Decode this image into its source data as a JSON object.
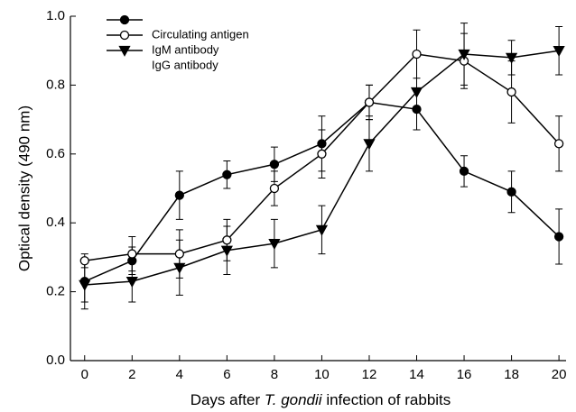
{
  "chart_data": {
    "type": "line",
    "xlabel": {
      "before": "Days after",
      "italic": "T. gondii",
      "after": "infection of rabbits"
    },
    "ylabel": "Optical density (490 nm)",
    "x": [
      0,
      2,
      4,
      6,
      8,
      10,
      12,
      14,
      16,
      18,
      20
    ],
    "xlim": [
      -0.6,
      20.3
    ],
    "xticks": [
      0,
      2,
      4,
      6,
      8,
      10,
      12,
      14,
      16,
      18,
      20
    ],
    "ylim": [
      0,
      1
    ],
    "yticks": [
      {
        "value": 0,
        "label": "0.0"
      },
      0.2,
      0.4,
      0.6,
      0.8,
      {
        "value": 1,
        "label": "1.0"
      }
    ],
    "series": [
      {
        "name": "Circulating antigen",
        "color": "#000000",
        "marker": "filled-circle",
        "values": [
          0.23,
          0.29,
          0.48,
          0.54,
          0.57,
          0.63,
          0.75,
          0.73,
          0.55,
          0.49,
          0.36
        ],
        "errors": [
          0.06,
          0.04,
          0.07,
          0.04,
          0.05,
          0.08,
          0.05,
          0.06,
          0.045,
          0.06,
          0.08
        ]
      },
      {
        "name": "IgM antibody",
        "color": "#000000",
        "marker": "open-circle",
        "values": [
          0.29,
          0.31,
          0.31,
          0.35,
          0.5,
          0.6,
          0.75,
          0.89,
          0.87,
          0.78,
          0.63
        ],
        "errors": [
          0.02,
          0.05,
          0.07,
          0.06,
          0.05,
          0.07,
          0.05,
          0.07,
          0.08,
          0.09,
          0.08
        ]
      },
      {
        "name": "IgG antibody",
        "color": "#000000",
        "marker": "triangle-down",
        "values": [
          0.22,
          0.23,
          0.27,
          0.32,
          0.34,
          0.38,
          0.63,
          0.78,
          0.89,
          0.88,
          0.9
        ],
        "errors": [
          0.07,
          0.06,
          0.08,
          0.07,
          0.07,
          0.07,
          0.08,
          0.11,
          0.09,
          0.05,
          0.07
        ]
      }
    ],
    "legend": "upper-left"
  }
}
